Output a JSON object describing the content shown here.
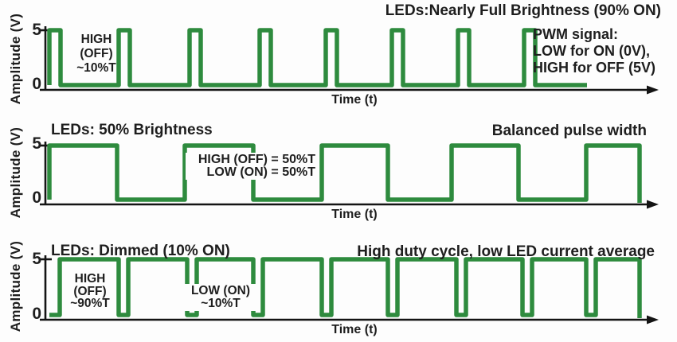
{
  "colors": {
    "signal_green": "#2e8b3e",
    "axis_black": "#141414",
    "text_black": "#1e1e1e"
  },
  "chart_data": [
    {
      "type": "line",
      "subtype": "pwm-square-wave",
      "title": "LEDs:Nearly Full Brightness (90% ON)",
      "side_note_lines": [
        "PWM signal:",
        "LOW for ON (0V),",
        "HIGH for OFF (5V)"
      ],
      "annotation_lines": [
        "HIGH",
        "(OFF)",
        "~10%T"
      ],
      "xlabel": "Time (t)",
      "ylabel": "Amplitude (V)",
      "yticks": [
        "5",
        "0"
      ],
      "ylim": [
        0,
        5
      ],
      "duty_cycle": {
        "high_off": "~10%T",
        "low_on": "~90%T",
        "led_on_pct": 90
      },
      "segments": [
        [
          5,
          14
        ],
        [
          0,
          73
        ],
        [
          5,
          14
        ],
        [
          0,
          75
        ],
        [
          5,
          14
        ],
        [
          0,
          74
        ],
        [
          5,
          14
        ],
        [
          0,
          69
        ],
        [
          5,
          14
        ],
        [
          0,
          69
        ],
        [
          5,
          14
        ],
        [
          0,
          69
        ],
        [
          5,
          14
        ],
        [
          0,
          69
        ],
        [
          5,
          14
        ],
        [
          0,
          65
        ]
      ]
    },
    {
      "type": "line",
      "subtype": "pwm-square-wave",
      "title": "LEDs: 50% Brightness",
      "right_title": "Balanced pulse width",
      "annotation_lines": [
        "HIGH (OFF) = 50%T",
        "LOW (ON) = 50%T"
      ],
      "xlabel": "Time (t)",
      "ylabel": "Amplitude (V)",
      "yticks": [
        "5",
        "0"
      ],
      "ylim": [
        0,
        5
      ],
      "duty_cycle": {
        "high_off": "50%T",
        "low_on": "50%T",
        "led_on_pct": 50
      },
      "segments": [
        [
          5,
          85
        ],
        [
          0,
          85
        ],
        [
          5,
          86
        ],
        [
          0,
          86
        ],
        [
          5,
          83
        ],
        [
          0,
          80
        ],
        [
          5,
          84
        ],
        [
          0,
          85
        ],
        [
          5,
          67
        ]
      ]
    },
    {
      "type": "line",
      "subtype": "pwm-square-wave",
      "title": "LEDs: Dimmed (10% ON)",
      "right_title": "High duty cycle, low LED current average",
      "annotation_lines": [
        "HIGH",
        "(OFF)",
        "~90%T"
      ],
      "annotation2_lines": [
        "LOW (ON)",
        "~10%T"
      ],
      "xlabel": "Time (t)",
      "ylabel": "Amplitude (V)",
      "yticks": [
        "5",
        "0"
      ],
      "ylim": [
        0,
        5
      ],
      "duty_cycle": {
        "high_off": "~90%T",
        "low_on": "~10%T",
        "led_on_pct": 10
      },
      "segments": [
        [
          0,
          13
        ],
        [
          5,
          74
        ],
        [
          0,
          12
        ],
        [
          5,
          74
        ],
        [
          0,
          12
        ],
        [
          5,
          71
        ],
        [
          0,
          12
        ],
        [
          5,
          74
        ],
        [
          0,
          12
        ],
        [
          5,
          71
        ],
        [
          0,
          12
        ],
        [
          5,
          74
        ],
        [
          0,
          12
        ],
        [
          5,
          71
        ],
        [
          0,
          12
        ],
        [
          5,
          68
        ],
        [
          0,
          12
        ],
        [
          5,
          55
        ]
      ]
    }
  ]
}
